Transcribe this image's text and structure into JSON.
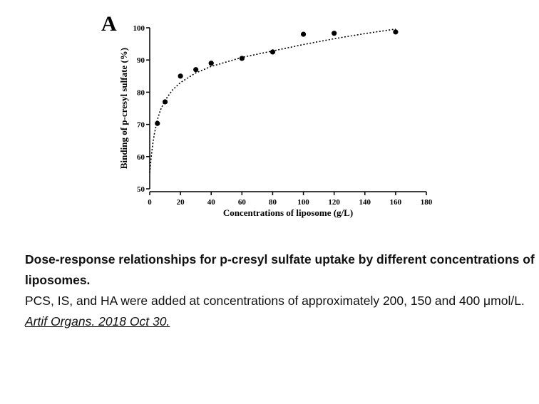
{
  "chart_data": {
    "type": "scatter",
    "panel_label": "A",
    "x_label": "Concentrations of liposome (g/L)",
    "y_label": "Binding of p-cresyl sulfate (%)",
    "x": [
      5,
      10,
      20,
      30,
      40,
      60,
      80,
      100,
      120,
      160
    ],
    "values": [
      70.3,
      77,
      85,
      87,
      89,
      90.5,
      92.5,
      98,
      98.3,
      98.7
    ],
    "color": "#000000",
    "fit": {
      "x": [
        0,
        1,
        2,
        3,
        5,
        7,
        10,
        15,
        20,
        30,
        40,
        60,
        80,
        100,
        120,
        140,
        160
      ],
      "values": [
        55,
        60,
        64,
        67,
        71.5,
        74.5,
        77.5,
        80.8,
        83,
        86,
        88,
        90.8,
        92.8,
        94.8,
        96.6,
        98.2,
        99.6
      ]
    },
    "xlim": [
      0,
      180
    ],
    "xticks": [
      0,
      20,
      40,
      60,
      80,
      100,
      120,
      140,
      160,
      180
    ],
    "ylim": [
      50,
      100
    ],
    "yticks": [
      50,
      60,
      70,
      80,
      90,
      100
    ]
  },
  "caption": {
    "title": "Dose-response relationships for p-cresyl sulfate uptake by different concentrations of liposomes.",
    "text": "PCS, IS, and HA were added at concentrations of approximately 200, 150 and 400 μmol/L.",
    "citation": "Artif Organs. 2018 Oct 30."
  }
}
